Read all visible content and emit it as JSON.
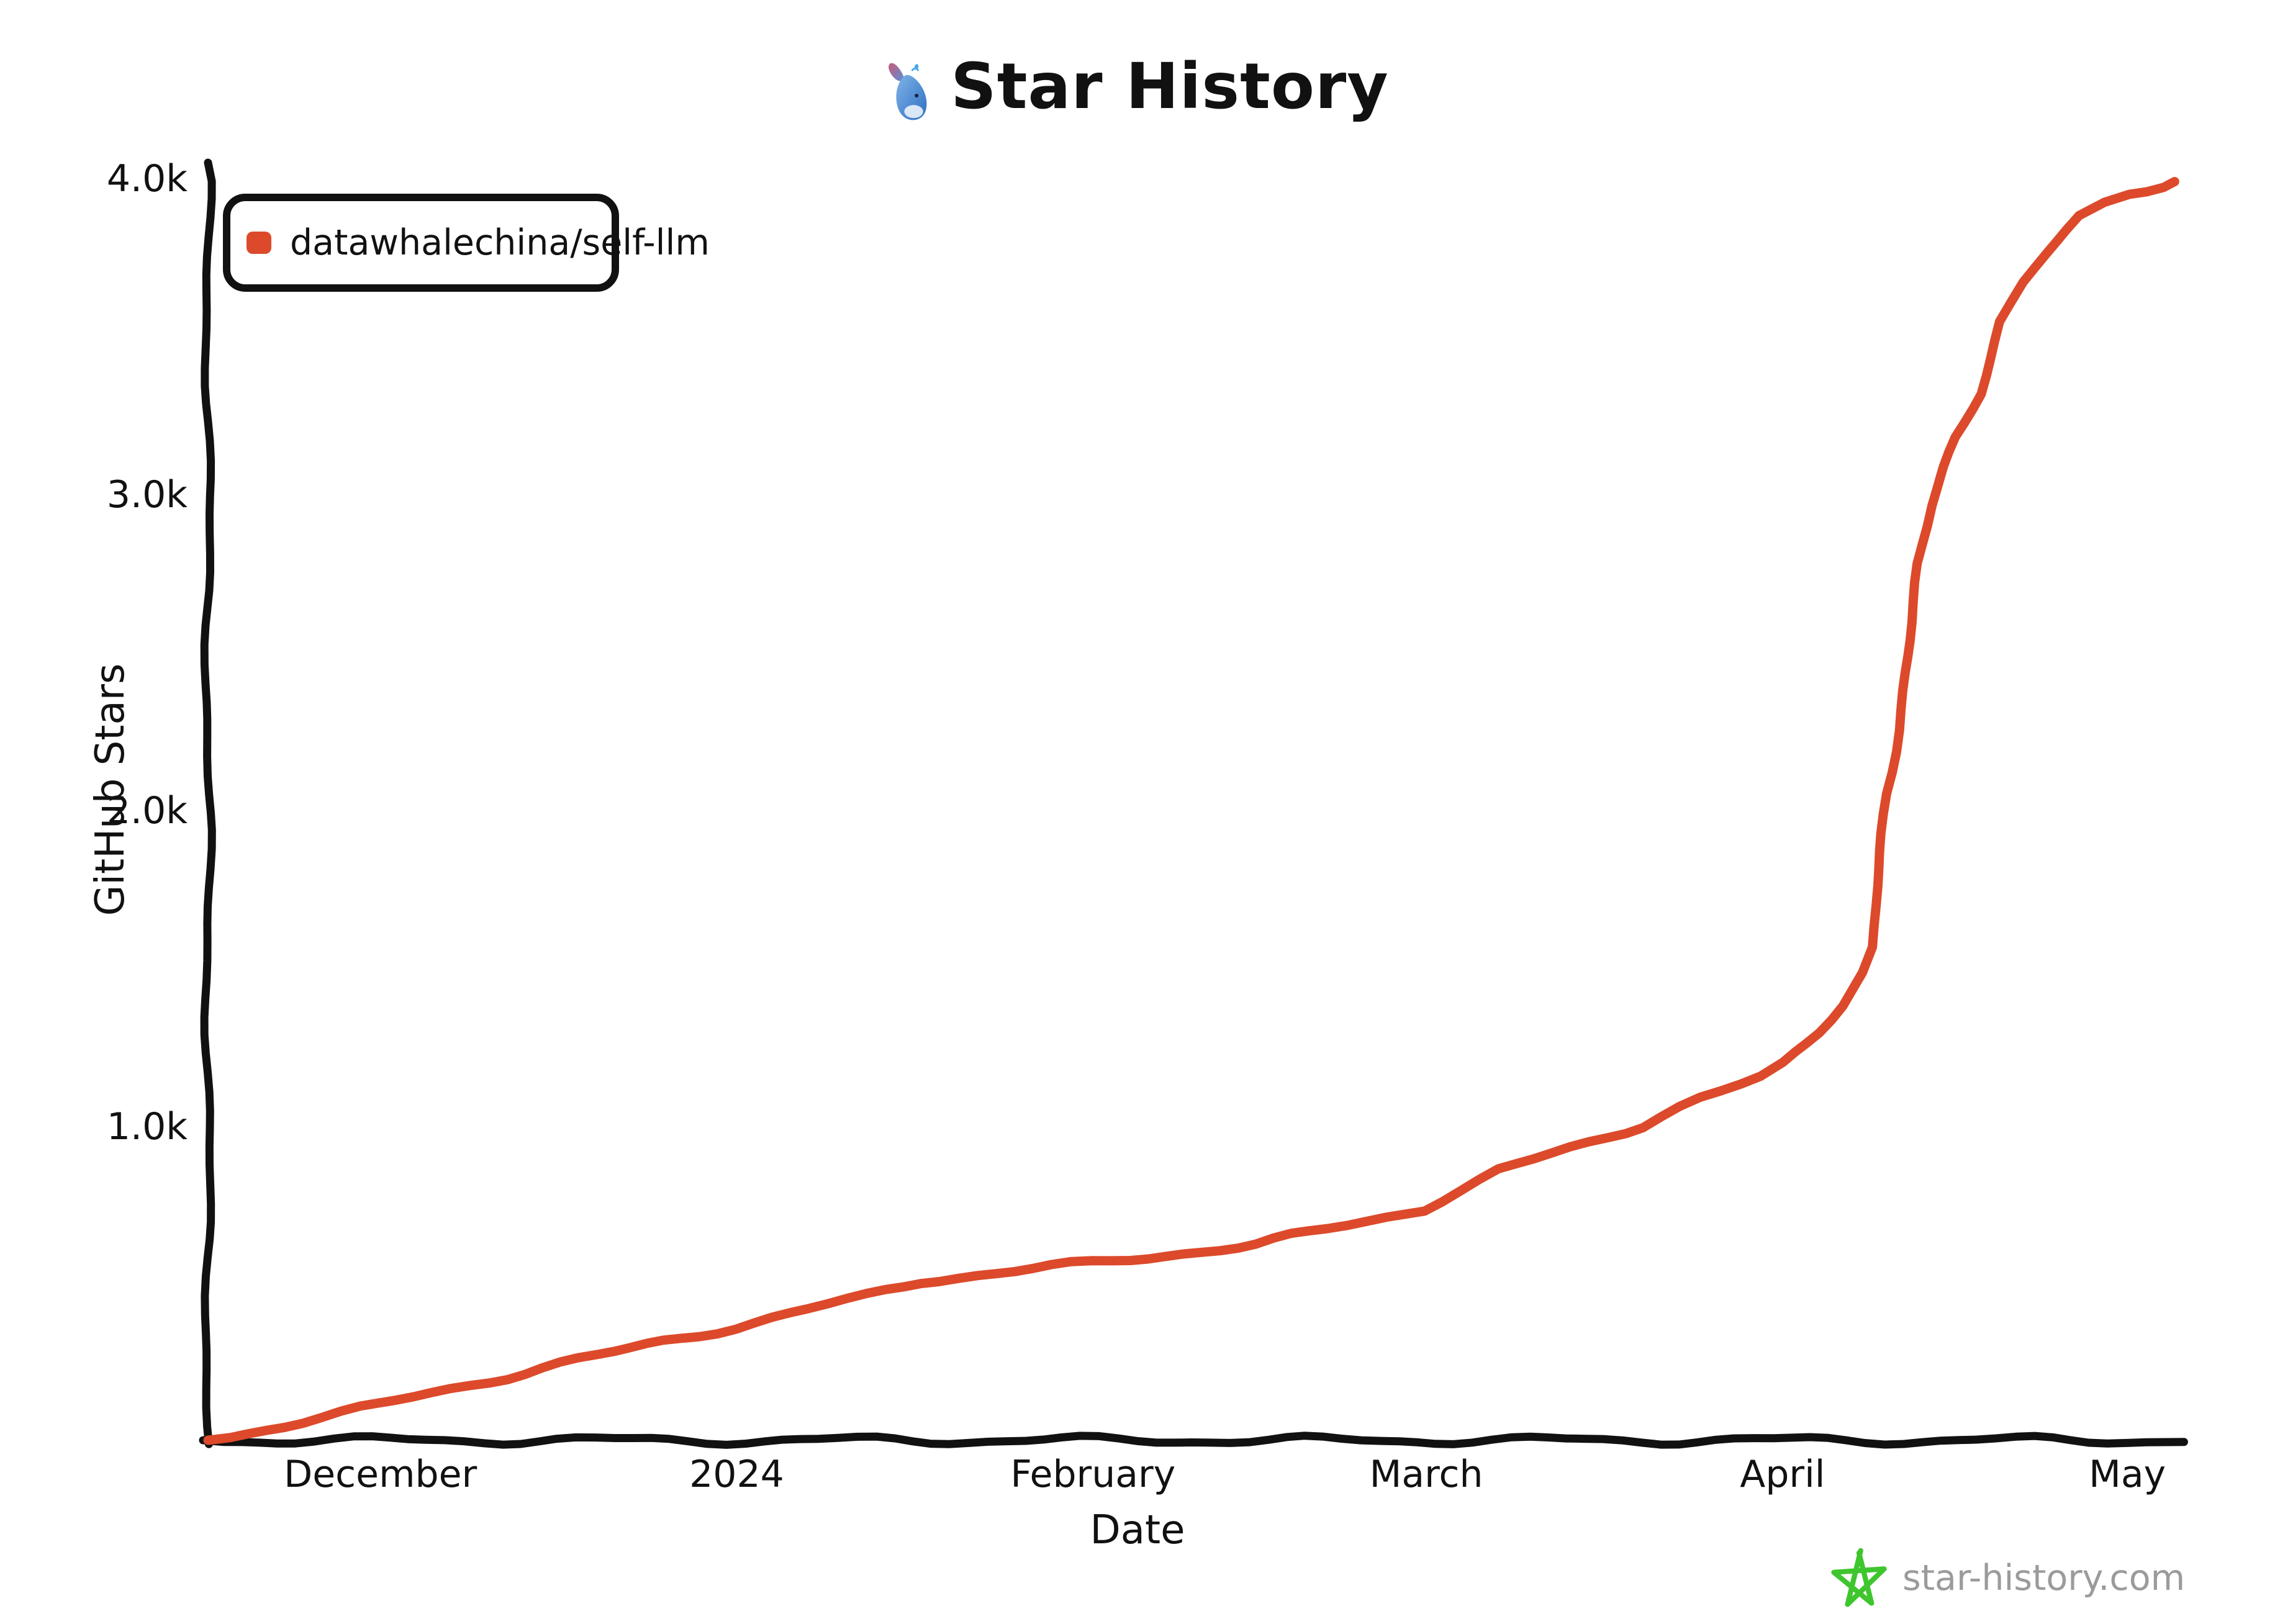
{
  "title": {
    "text": "Star History"
  },
  "colors": {
    "series_red": "#DC4A2B",
    "axis_black": "#111111",
    "footer_gray": "#9B9B9B",
    "star_green": "#3FC62E",
    "background": "#FFFFFF"
  },
  "footer": {
    "site": "star-history.com"
  },
  "chart_data": {
    "type": "line",
    "title": "Star History",
    "xlabel": "Date",
    "ylabel": "GitHub Stars",
    "ylim": [
      0,
      4000
    ],
    "x_start_date": "2023-11-16",
    "x_end_date": "2024-05-05",
    "grid": false,
    "legend_position": "top-left",
    "x_ticks": [
      {
        "label": "December",
        "date": "2023-12-01"
      },
      {
        "label": "2024",
        "date": "2024-01-01"
      },
      {
        "label": "February",
        "date": "2024-02-01"
      },
      {
        "label": "March",
        "date": "2024-03-01"
      },
      {
        "label": "April",
        "date": "2024-04-01"
      },
      {
        "label": "May",
        "date": "2024-05-01"
      }
    ],
    "y_ticks": [
      {
        "label": "1.0k",
        "value": 1000
      },
      {
        "label": "2.0k",
        "value": 2000
      },
      {
        "label": "3.0k",
        "value": 3000
      },
      {
        "label": "4.0k",
        "value": 4000
      }
    ],
    "series": [
      {
        "name": "datawhalechina/self-llm",
        "color": "#DC4A2B",
        "points": [
          [
            "2023-11-16",
            0
          ],
          [
            "2023-12-01",
            110
          ],
          [
            "2023-12-15",
            230
          ],
          [
            "2024-01-01",
            360
          ],
          [
            "2024-01-12",
            455
          ],
          [
            "2024-01-17",
            505
          ],
          [
            "2024-02-01",
            560
          ],
          [
            "2024-02-15",
            620
          ],
          [
            "2024-02-20",
            655
          ],
          [
            "2024-03-01",
            735
          ],
          [
            "2024-03-07",
            850
          ],
          [
            "2024-03-20",
            1000
          ],
          [
            "2024-03-25",
            1080
          ],
          [
            "2024-03-30",
            1145
          ],
          [
            "2024-04-01",
            1190
          ],
          [
            "2024-04-04",
            1300
          ],
          [
            "2024-04-06",
            1380
          ],
          [
            "2024-04-08",
            1480
          ],
          [
            "2024-04-09",
            1560
          ],
          [
            "2024-04-10",
            2050
          ],
          [
            "2024-04-11",
            2250
          ],
          [
            "2024-04-12",
            2530
          ],
          [
            "2024-04-13",
            2780
          ],
          [
            "2024-04-14",
            2960
          ],
          [
            "2024-04-15",
            3070
          ],
          [
            "2024-04-16",
            3170
          ],
          [
            "2024-04-18",
            3310
          ],
          [
            "2024-04-20",
            3550
          ],
          [
            "2024-04-22",
            3660
          ],
          [
            "2024-04-24",
            3745
          ],
          [
            "2024-04-27",
            3870
          ],
          [
            "2024-04-29",
            3915
          ],
          [
            "2024-05-01",
            3950
          ],
          [
            "2024-05-04",
            3975
          ],
          [
            "2024-05-05",
            3990
          ]
        ]
      }
    ]
  }
}
